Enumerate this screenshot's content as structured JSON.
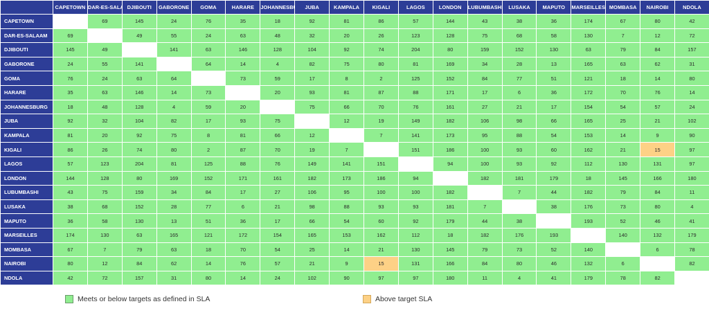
{
  "chart_data": {
    "type": "heatmap",
    "title": "",
    "xlabel": "",
    "ylabel": "",
    "cities": [
      "CAPETOWN",
      "DAR-ES-SALAAM",
      "DJIBOUTI",
      "GABORONE",
      "GOMA",
      "HARARE",
      "JOHANNESBURG",
      "JUBA",
      "KAMPALA",
      "KIGALI",
      "LAGOS",
      "LONDON",
      "LUBUMBASHI",
      "LUSAKA",
      "MAPUTO",
      "MARSEILLES",
      "MOMBASA",
      "NAIROBI",
      "NDOLA"
    ],
    "values": [
      [
        null,
        69,
        145,
        24,
        76,
        35,
        18,
        92,
        81,
        86,
        57,
        144,
        43,
        38,
        36,
        174,
        67,
        80,
        42
      ],
      [
        69,
        null,
        49,
        55,
        24,
        63,
        48,
        32,
        20,
        26,
        123,
        128,
        75,
        68,
        58,
        130,
        7,
        12,
        72
      ],
      [
        145,
        49,
        null,
        141,
        63,
        146,
        128,
        104,
        92,
        74,
        204,
        80,
        159,
        152,
        130,
        63,
        79,
        84,
        157
      ],
      [
        24,
        55,
        141,
        null,
        64,
        14,
        4,
        82,
        75,
        80,
        81,
        169,
        34,
        28,
        13,
        165,
        63,
        62,
        31
      ],
      [
        76,
        24,
        63,
        64,
        null,
        73,
        59,
        17,
        8,
        2,
        125,
        152,
        84,
        77,
        51,
        121,
        18,
        14,
        80
      ],
      [
        35,
        63,
        146,
        14,
        73,
        null,
        20,
        93,
        81,
        87,
        88,
        171,
        17,
        6,
        36,
        172,
        70,
        76,
        14
      ],
      [
        18,
        48,
        128,
        4,
        59,
        20,
        null,
        75,
        66,
        70,
        76,
        161,
        27,
        21,
        17,
        154,
        54,
        57,
        24
      ],
      [
        92,
        32,
        104,
        82,
        17,
        93,
        75,
        null,
        12,
        19,
        149,
        182,
        106,
        98,
        66,
        165,
        25,
        21,
        102
      ],
      [
        81,
        20,
        92,
        75,
        8,
        81,
        66,
        12,
        null,
        7,
        141,
        173,
        95,
        88,
        54,
        153,
        14,
        9,
        90
      ],
      [
        86,
        26,
        74,
        80,
        2,
        87,
        70,
        19,
        7,
        null,
        151,
        186,
        100,
        93,
        60,
        162,
        21,
        15,
        97
      ],
      [
        57,
        123,
        204,
        81,
        125,
        88,
        76,
        149,
        141,
        151,
        null,
        94,
        100,
        93,
        92,
        112,
        130,
        131,
        97
      ],
      [
        144,
        128,
        80,
        169,
        152,
        171,
        161,
        182,
        173,
        186,
        94,
        null,
        182,
        181,
        179,
        18,
        145,
        166,
        180
      ],
      [
        43,
        75,
        159,
        34,
        84,
        17,
        27,
        106,
        95,
        100,
        100,
        182,
        null,
        7,
        44,
        182,
        79,
        84,
        11
      ],
      [
        38,
        68,
        152,
        28,
        77,
        6,
        21,
        98,
        88,
        93,
        93,
        181,
        7,
        null,
        38,
        176,
        73,
        80,
        4
      ],
      [
        36,
        58,
        130,
        13,
        51,
        36,
        17,
        66,
        54,
        60,
        92,
        179,
        44,
        38,
        null,
        193,
        52,
        46,
        41
      ],
      [
        174,
        130,
        63,
        165,
        121,
        172,
        154,
        165,
        153,
        162,
        112,
        18,
        182,
        176,
        193,
        null,
        140,
        132,
        179
      ],
      [
        67,
        7,
        79,
        63,
        18,
        70,
        54,
        25,
        14,
        21,
        130,
        145,
        79,
        73,
        52,
        140,
        null,
        6,
        78
      ],
      [
        80,
        12,
        84,
        62,
        14,
        76,
        57,
        21,
        9,
        15,
        131,
        166,
        84,
        80,
        46,
        132,
        6,
        null,
        82
      ],
      [
        42,
        72,
        157,
        31,
        80,
        14,
        24,
        102,
        90,
        97,
        97,
        180,
        11,
        4,
        41,
        179,
        78,
        82,
        null
      ]
    ],
    "above_sla": [
      [
        9,
        17
      ],
      [
        17,
        9
      ]
    ],
    "colors": {
      "header_bg": "#2d3d97",
      "meets": "#90ee90",
      "above": "#fdd186",
      "self": "#ffffff"
    },
    "legend": {
      "meets_label": "Meets or below targets as defined in SLA",
      "above_label": "Above target SLA",
      "placement": "bottom"
    }
  }
}
